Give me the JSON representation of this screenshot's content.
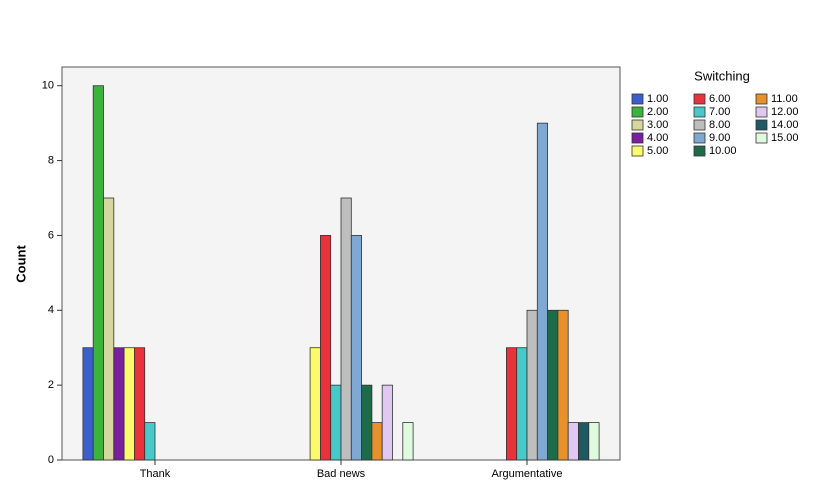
{
  "chart_data": {
    "type": "bar",
    "y_label": "Count",
    "legend_title": "Switching",
    "categories": [
      "Thank",
      "Bad news",
      "Argumentative"
    ],
    "ylim": [
      0,
      10.5
    ],
    "yticks": [
      0,
      2,
      4,
      6,
      8,
      10
    ],
    "series": [
      {
        "name": "1.00",
        "color": "#3a5fcd",
        "values": [
          3,
          null,
          null
        ]
      },
      {
        "name": "2.00",
        "color": "#3cb43c",
        "values": [
          10,
          null,
          null
        ]
      },
      {
        "name": "3.00",
        "color": "#d6d6a0",
        "values": [
          7,
          null,
          null
        ]
      },
      {
        "name": "4.00",
        "color": "#7a1f9e",
        "values": [
          3,
          null,
          null
        ]
      },
      {
        "name": "5.00",
        "color": "#fafa6e",
        "values": [
          3,
          3,
          null
        ]
      },
      {
        "name": "6.00",
        "color": "#e8323c",
        "values": [
          3,
          6,
          3
        ]
      },
      {
        "name": "7.00",
        "color": "#48c8c8",
        "values": [
          1,
          2,
          3
        ]
      },
      {
        "name": "8.00",
        "color": "#bebebe",
        "values": [
          null,
          7,
          4
        ]
      },
      {
        "name": "9.00",
        "color": "#7fa8d2",
        "values": [
          null,
          6,
          9
        ]
      },
      {
        "name": "10.00",
        "color": "#1e6b4a",
        "values": [
          null,
          2,
          4
        ]
      },
      {
        "name": "11.00",
        "color": "#e8902a",
        "values": [
          null,
          1,
          4
        ]
      },
      {
        "name": "12.00",
        "color": "#e0c8f0",
        "values": [
          null,
          2,
          1
        ]
      },
      {
        "name": "14.00",
        "color": "#1e5a64",
        "values": [
          null,
          null,
          1
        ]
      },
      {
        "name": "15.00",
        "color": "#e0fae0",
        "values": [
          null,
          1,
          1
        ]
      }
    ]
  }
}
